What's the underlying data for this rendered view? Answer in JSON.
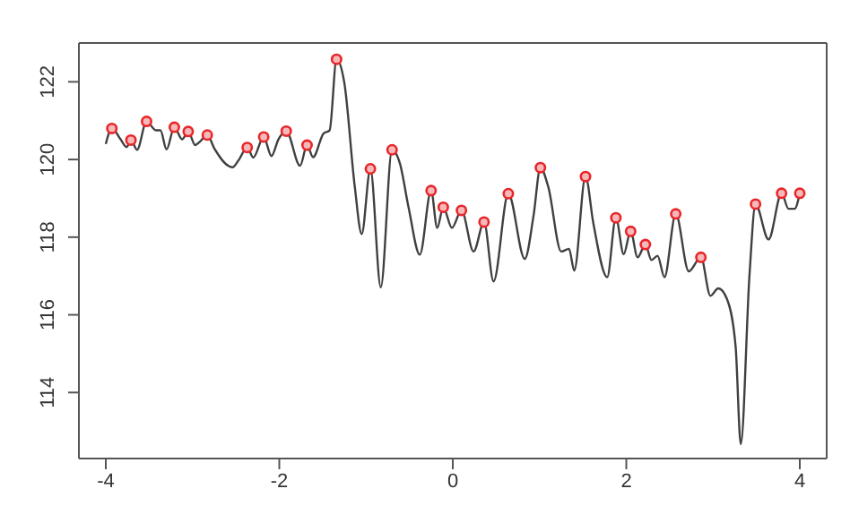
{
  "chart_data": {
    "type": "line",
    "xlim": [
      -4.31,
      4.31
    ],
    "ylim": [
      112.3,
      123.0
    ],
    "xticks": [
      -4,
      -2,
      0,
      2,
      4
    ],
    "yticks": [
      114,
      116,
      118,
      120,
      122
    ],
    "grid": false,
    "series": [
      {
        "color": "#404040",
        "marker": "none",
        "x": [
          -4.0,
          -3.93,
          -3.83,
          -3.76,
          -3.71,
          -3.64,
          -3.53,
          -3.42,
          -3.37,
          -3.3,
          -3.21,
          -3.12,
          -3.05,
          -2.97,
          -2.92,
          -2.83,
          -2.75,
          -2.54,
          -2.47,
          -2.37,
          -2.3,
          -2.18,
          -2.09,
          -2.01,
          -1.92,
          -1.76,
          -1.68,
          -1.61,
          -1.49,
          -1.42,
          -1.34,
          -1.25,
          -1.13,
          -1.05,
          -0.95,
          -0.83,
          -0.7,
          -0.61,
          -0.51,
          -0.38,
          -0.25,
          -0.18,
          -0.11,
          -0.01,
          0.1,
          0.24,
          0.36,
          0.47,
          0.64,
          0.83,
          0.93,
          1.01,
          1.1,
          1.25,
          1.34,
          1.4,
          1.53,
          1.62,
          1.78,
          1.88,
          1.97,
          2.05,
          2.13,
          2.22,
          2.29,
          2.36,
          2.44,
          2.57,
          2.72,
          2.86,
          2.97,
          3.06,
          3.16,
          3.26,
          3.32,
          3.42,
          3.49,
          3.64,
          3.79,
          3.87,
          3.94,
          4.0
        ],
        "values": [
          120.4,
          120.8,
          120.52,
          120.32,
          120.5,
          120.25,
          120.98,
          120.75,
          120.75,
          120.26,
          120.83,
          120.52,
          120.72,
          120.37,
          120.45,
          120.63,
          120.29,
          119.8,
          119.98,
          120.31,
          120.05,
          120.58,
          120.09,
          120.52,
          120.73,
          119.84,
          120.37,
          120.06,
          120.67,
          120.75,
          122.58,
          121.97,
          119.3,
          118.08,
          119.76,
          116.71,
          120.25,
          119.9,
          118.77,
          117.55,
          119.2,
          118.24,
          118.77,
          118.24,
          118.69,
          117.63,
          118.39,
          116.86,
          119.12,
          117.44,
          118.54,
          119.79,
          119.3,
          117.63,
          117.7,
          117.14,
          119.56,
          118.36,
          116.97,
          118.5,
          117.56,
          118.15,
          117.48,
          117.81,
          117.41,
          117.52,
          116.97,
          118.6,
          117.12,
          117.48,
          116.49,
          116.68,
          116.41,
          115.19,
          112.67,
          117.02,
          118.85,
          117.94,
          119.13,
          118.73,
          118.73,
          119.13
        ]
      },
      {
        "type": "scatter",
        "color": "#e8262a",
        "marker": "circle",
        "x": [
          -3.93,
          -3.71,
          -3.53,
          -3.21,
          -3.05,
          -2.83,
          -2.37,
          -2.18,
          -1.92,
          -1.68,
          -1.34,
          -0.95,
          -0.7,
          -0.25,
          -0.11,
          0.1,
          0.36,
          0.64,
          1.01,
          1.53,
          1.88,
          2.05,
          2.22,
          2.57,
          2.86,
          3.49,
          3.79,
          4.0
        ],
        "values": [
          120.8,
          120.5,
          120.98,
          120.83,
          120.72,
          120.63,
          120.31,
          120.58,
          120.73,
          120.37,
          122.58,
          119.76,
          120.25,
          119.2,
          118.77,
          118.69,
          118.39,
          119.12,
          119.79,
          119.56,
          118.5,
          118.15,
          117.81,
          118.6,
          117.48,
          118.85,
          119.13,
          119.13
        ]
      }
    ]
  }
}
